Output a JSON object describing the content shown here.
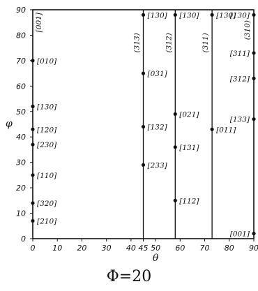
{
  "axes": {
    "x_label": "θ",
    "y_label": "φ",
    "x_ticks": [
      "0",
      "10",
      "20",
      "30",
      "40",
      "45",
      "50",
      "60",
      "70",
      "80",
      "90"
    ],
    "y_ticks": [
      "0",
      "10",
      "20",
      "30",
      "40",
      "50",
      "60",
      "70",
      "80",
      "90"
    ]
  },
  "poles": [
    {
      "label": "[001]",
      "theta": 0,
      "phi": 85,
      "vertical": true
    },
    {
      "label": "[010]",
      "theta": 0,
      "phi": 70,
      "vertical": false
    },
    {
      "label": "[130]",
      "theta": 0,
      "phi": 52,
      "vertical": false
    },
    {
      "label": "[120]",
      "theta": 0,
      "phi": 43,
      "vertical": false
    },
    {
      "label": "[230]",
      "theta": 0,
      "phi": 37,
      "vertical": false
    },
    {
      "label": "[110]",
      "theta": 0,
      "phi": 25,
      "vertical": false
    },
    {
      "label": "[320]",
      "theta": 0,
      "phi": 14,
      "vertical": false
    },
    {
      "label": "[210]",
      "theta": 0,
      "phi": 7,
      "vertical": false
    },
    {
      "label": "[130]",
      "theta": 45,
      "phi": 88,
      "vertical": false
    },
    {
      "label": "(313)",
      "theta": 45,
      "phi": 77,
      "vertical": true
    },
    {
      "label": "[031]",
      "theta": 45,
      "phi": 65,
      "vertical": false
    },
    {
      "label": "[132]",
      "theta": 45,
      "phi": 44,
      "vertical": false
    },
    {
      "label": "[233]",
      "theta": 45,
      "phi": 29,
      "vertical": false
    },
    {
      "label": "[130]",
      "theta": 58,
      "phi": 88,
      "vertical": false
    },
    {
      "label": "(312)",
      "theta": 58,
      "phi": 77,
      "vertical": true
    },
    {
      "label": "[021]",
      "theta": 58,
      "phi": 49,
      "vertical": false
    },
    {
      "label": "[131]",
      "theta": 58,
      "phi": 36,
      "vertical": false
    },
    {
      "label": "[112]",
      "theta": 58,
      "phi": 15,
      "vertical": false
    },
    {
      "label": "[130]",
      "theta": 73,
      "phi": 88,
      "vertical": false
    },
    {
      "label": "(311)",
      "theta": 73,
      "phi": 77,
      "vertical": true
    },
    {
      "label": "[011]",
      "theta": 73,
      "phi": 43,
      "vertical": false
    },
    {
      "label": "[130]",
      "theta": 90,
      "phi": 88,
      "vertical": false
    },
    {
      "label": "(310)",
      "theta": 90,
      "phi": 82,
      "vertical": true
    },
    {
      "label": "[311]",
      "theta": 90,
      "phi": 73,
      "vertical": false
    },
    {
      "label": "[312]",
      "theta": 90,
      "phi": 63,
      "vertical": false
    },
    {
      "label": "[133]",
      "theta": 90,
      "phi": 47,
      "vertical": false
    },
    {
      "label": "[001]",
      "theta": 90,
      "phi": 2,
      "vertical": false
    }
  ],
  "vertical_lines_theta": [
    45,
    58,
    73
  ],
  "caption": "Φ=20"
}
